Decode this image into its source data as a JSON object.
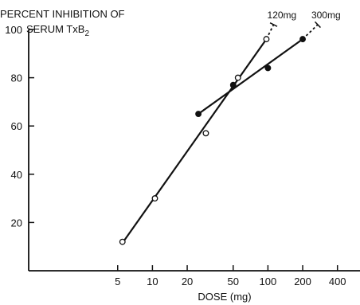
{
  "chart_data": {
    "type": "scatter",
    "ylabel_lines": [
      "PERCENT INHIBITION OF",
      "SERUM TxB",
      "2"
    ],
    "xlabel": "DOSE (mg)",
    "xscale": "log",
    "xlim": [
      5,
      400
    ],
    "ylim": [
      0,
      100
    ],
    "x_ticks": [
      5,
      10,
      20,
      50,
      100,
      200,
      400
    ],
    "x_tick_labels": [
      "5",
      "10",
      "20",
      "50",
      "100",
      "200",
      "400"
    ],
    "y_ticks": [
      20,
      40,
      60,
      80,
      100
    ],
    "y_tick_labels": [
      "20",
      "40",
      "60",
      "80",
      "100"
    ],
    "series": [
      {
        "marker": "open-circle",
        "points": [
          [
            5.5,
            12
          ],
          [
            10.5,
            30
          ],
          [
            29,
            57
          ],
          [
            55,
            80
          ],
          [
            97,
            96
          ]
        ],
        "fit": [
          [
            5.5,
            11.5
          ],
          [
            97,
            96
          ]
        ],
        "extrapolation": [
          [
            97,
            96
          ],
          [
            112,
            102
          ]
        ],
        "annotation": "120mg"
      },
      {
        "marker": "filled-circle",
        "points": [
          [
            25,
            65
          ],
          [
            50,
            77
          ],
          [
            100,
            84
          ],
          [
            200,
            96
          ]
        ],
        "fit": [
          [
            25,
            65
          ],
          [
            200,
            96
          ]
        ],
        "extrapolation": [
          [
            200,
            96
          ],
          [
            270,
            102
          ]
        ],
        "annotation": "300mg"
      }
    ]
  }
}
